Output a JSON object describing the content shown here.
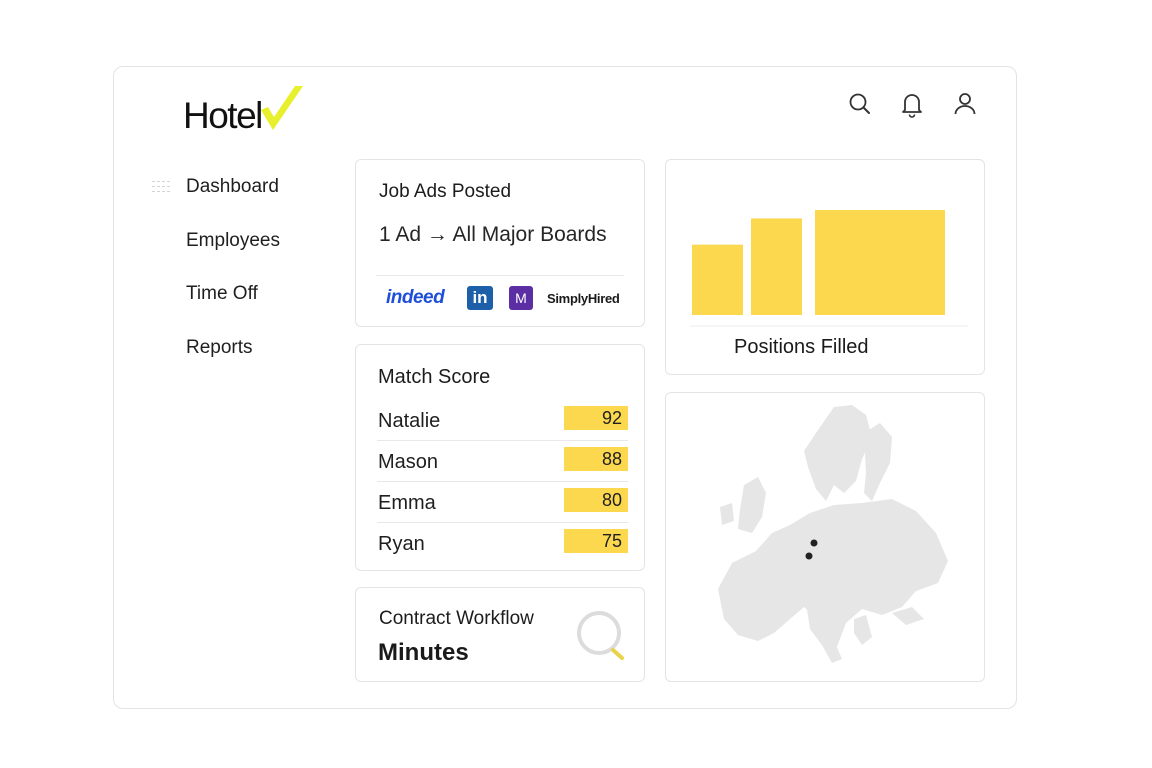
{
  "logo": {
    "text": "Hotel"
  },
  "nav": {
    "items": [
      {
        "label": "Dashboard",
        "active": true
      },
      {
        "label": "Employees"
      },
      {
        "label": "Time Off"
      },
      {
        "label": "Reports"
      }
    ]
  },
  "header_icons": [
    "search-icon",
    "bell-icon",
    "user-icon"
  ],
  "job_ads": {
    "title": "Job Ads Posted",
    "subtitle": "1 Ad → All Major Boards",
    "boards": {
      "indeed": "indeed",
      "linkedin": "in",
      "monster": "M",
      "simplyhired": "SimplyHired"
    }
  },
  "match_score": {
    "title": "Match Score",
    "rows": [
      {
        "name": "Natalie",
        "score": "92"
      },
      {
        "name": "Mason",
        "score": "88"
      },
      {
        "name": "Emma",
        "score": "80"
      },
      {
        "name": "Ryan",
        "score": "75"
      }
    ]
  },
  "contract": {
    "title": "Contract Workflow",
    "subtitle": "Minutes"
  },
  "chart_data": {
    "type": "bar",
    "title": "Positions Filled",
    "values": [
      0.67,
      0.92,
      1.0
    ],
    "color": "#fcd84f"
  },
  "map": {
    "markers": 2
  },
  "colors": {
    "accent": "#fcd84f",
    "logo_check": "#e8ef2c"
  }
}
